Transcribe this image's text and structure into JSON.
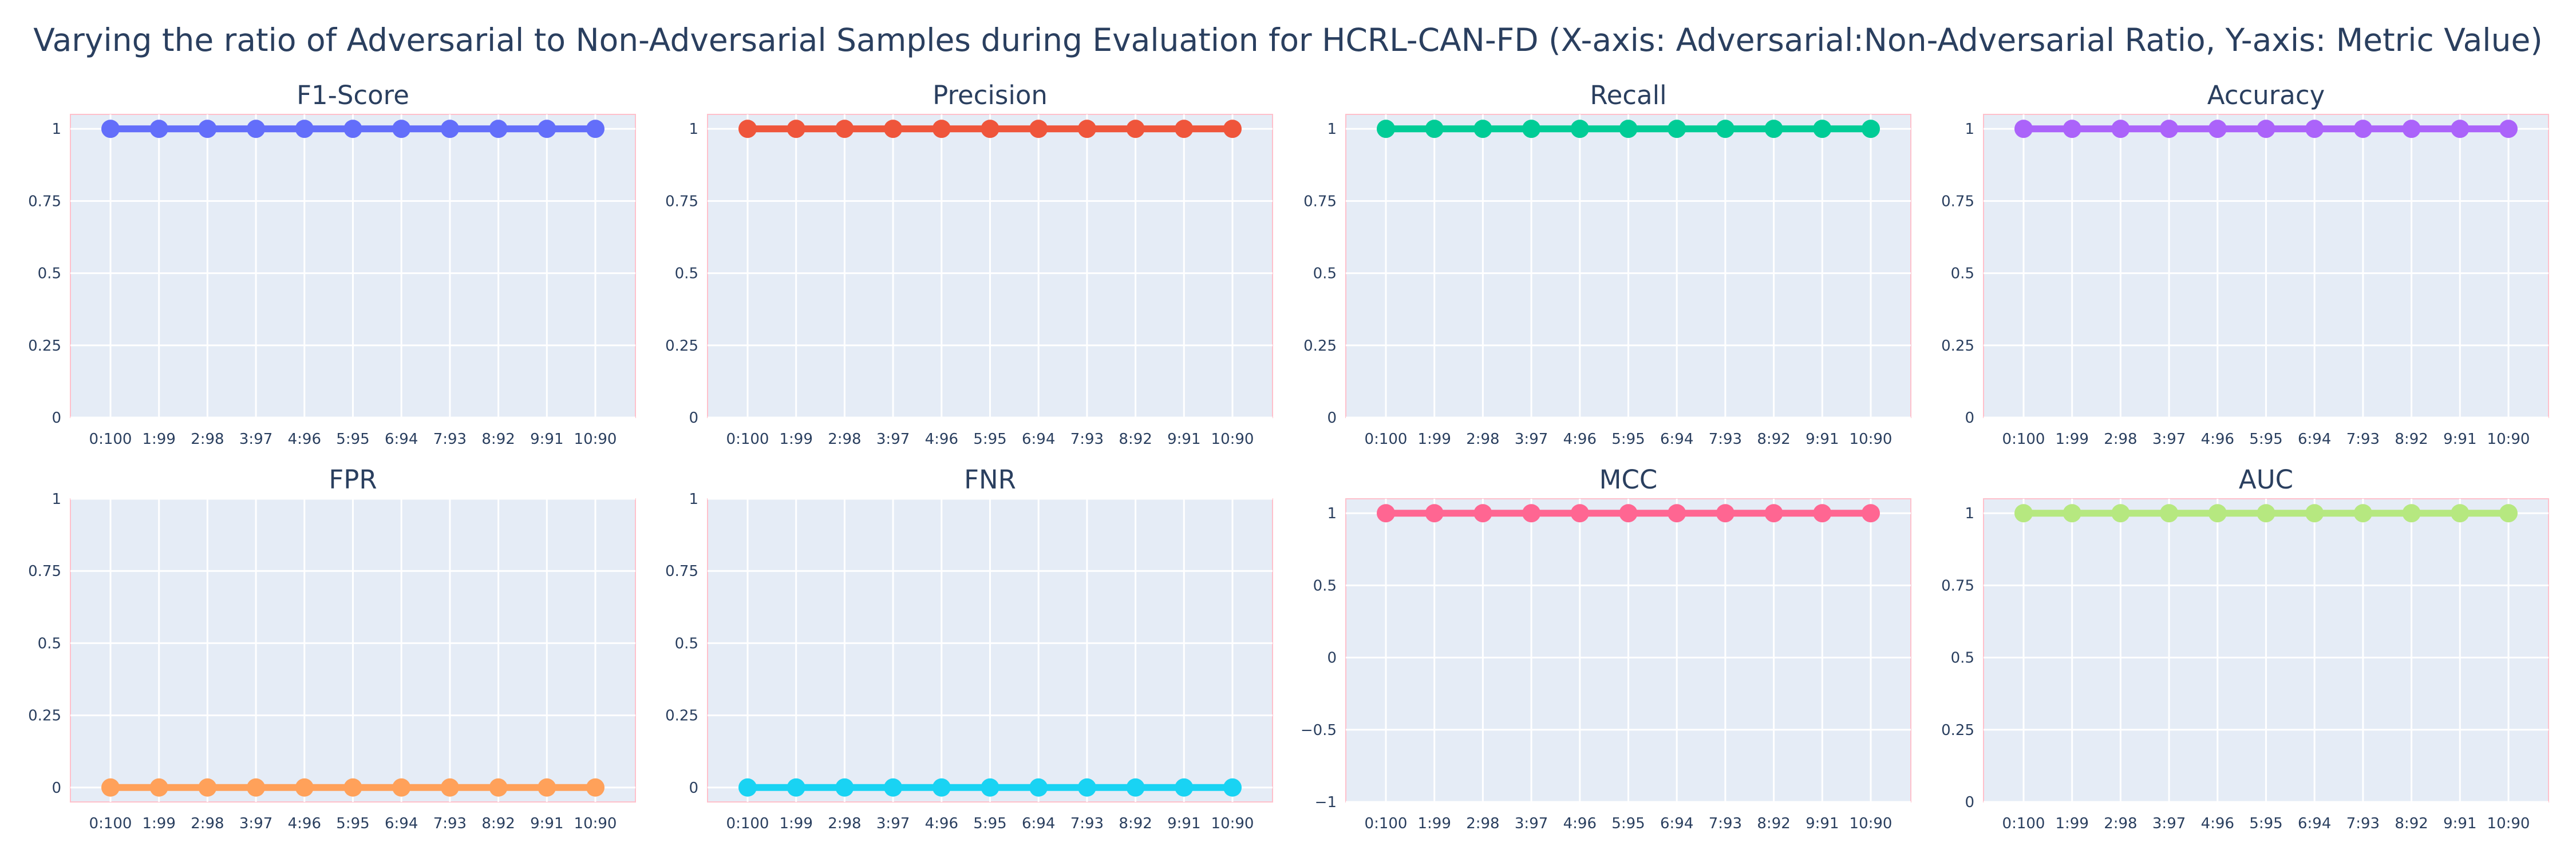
{
  "title": "Varying the ratio of Adversarial to Non-Adversarial Samples during Evaluation for HCRL-CAN-FD (X-axis: Adversarial:Non-Adversarial Ratio, Y-axis: Metric Value)",
  "chart_data": [
    {
      "type": "line",
      "title": "F1-Score",
      "color": "#636efa",
      "categories": [
        "0:100",
        "1:99",
        "2:98",
        "3:97",
        "4:96",
        "5:95",
        "6:94",
        "7:93",
        "8:92",
        "9:91",
        "10:90"
      ],
      "values": [
        1,
        1,
        1,
        1,
        1,
        1,
        1,
        1,
        1,
        1,
        1
      ],
      "ylim": [
        0,
        1.05
      ],
      "yticks": [
        0,
        0.25,
        0.5,
        0.75,
        1
      ],
      "ytick_labels": [
        "0",
        "0.25",
        "0.5",
        "0.75",
        "1"
      ],
      "grid": true
    },
    {
      "type": "line",
      "title": "Precision",
      "color": "#ef553b",
      "categories": [
        "0:100",
        "1:99",
        "2:98",
        "3:97",
        "4:96",
        "5:95",
        "6:94",
        "7:93",
        "8:92",
        "9:91",
        "10:90"
      ],
      "values": [
        1,
        1,
        1,
        1,
        1,
        1,
        1,
        1,
        1,
        1,
        1
      ],
      "ylim": [
        0,
        1.05
      ],
      "yticks": [
        0,
        0.25,
        0.5,
        0.75,
        1
      ],
      "ytick_labels": [
        "0",
        "0.25",
        "0.5",
        "0.75",
        "1"
      ],
      "grid": true
    },
    {
      "type": "line",
      "title": "Recall",
      "color": "#00cc96",
      "categories": [
        "0:100",
        "1:99",
        "2:98",
        "3:97",
        "4:96",
        "5:95",
        "6:94",
        "7:93",
        "8:92",
        "9:91",
        "10:90"
      ],
      "values": [
        1,
        1,
        1,
        1,
        1,
        1,
        1,
        1,
        1,
        1,
        1
      ],
      "ylim": [
        0,
        1.05
      ],
      "yticks": [
        0,
        0.25,
        0.5,
        0.75,
        1
      ],
      "ytick_labels": [
        "0",
        "0.25",
        "0.5",
        "0.75",
        "1"
      ],
      "grid": true
    },
    {
      "type": "line",
      "title": "Accuracy",
      "color": "#ab63fa",
      "categories": [
        "0:100",
        "1:99",
        "2:98",
        "3:97",
        "4:96",
        "5:95",
        "6:94",
        "7:93",
        "8:92",
        "9:91",
        "10:90"
      ],
      "values": [
        1,
        1,
        1,
        1,
        1,
        1,
        1,
        1,
        1,
        1,
        1
      ],
      "ylim": [
        0,
        1.05
      ],
      "yticks": [
        0,
        0.25,
        0.5,
        0.75,
        1
      ],
      "ytick_labels": [
        "0",
        "0.25",
        "0.5",
        "0.75",
        "1"
      ],
      "grid": true
    },
    {
      "type": "line",
      "title": "FPR",
      "color": "#ffa15a",
      "categories": [
        "0:100",
        "1:99",
        "2:98",
        "3:97",
        "4:96",
        "5:95",
        "6:94",
        "7:93",
        "8:92",
        "9:91",
        "10:90"
      ],
      "values": [
        0,
        0,
        0,
        0,
        0,
        0,
        0,
        0,
        0,
        0,
        0
      ],
      "ylim": [
        -0.05,
        1
      ],
      "yticks": [
        0,
        0.25,
        0.5,
        0.75,
        1
      ],
      "ytick_labels": [
        "0",
        "0.25",
        "0.5",
        "0.75",
        "1"
      ],
      "grid": true
    },
    {
      "type": "line",
      "title": "FNR",
      "color": "#19d3f3",
      "categories": [
        "0:100",
        "1:99",
        "2:98",
        "3:97",
        "4:96",
        "5:95",
        "6:94",
        "7:93",
        "8:92",
        "9:91",
        "10:90"
      ],
      "values": [
        0,
        0,
        0,
        0,
        0,
        0,
        0,
        0,
        0,
        0,
        0
      ],
      "ylim": [
        -0.05,
        1
      ],
      "yticks": [
        0,
        0.25,
        0.5,
        0.75,
        1
      ],
      "ytick_labels": [
        "0",
        "0.25",
        "0.5",
        "0.75",
        "1"
      ],
      "grid": true
    },
    {
      "type": "line",
      "title": "MCC",
      "color": "#ff6692",
      "categories": [
        "0:100",
        "1:99",
        "2:98",
        "3:97",
        "4:96",
        "5:95",
        "6:94",
        "7:93",
        "8:92",
        "9:91",
        "10:90"
      ],
      "values": [
        1,
        1,
        1,
        1,
        1,
        1,
        1,
        1,
        1,
        1,
        1
      ],
      "ylim": [
        -1,
        1.1
      ],
      "yticks": [
        -1,
        -0.5,
        0,
        0.5,
        1
      ],
      "ytick_labels": [
        "−1",
        "−0.5",
        "0",
        "0.5",
        "1"
      ],
      "grid": true
    },
    {
      "type": "line",
      "title": "AUC",
      "color": "#b6e880",
      "categories": [
        "0:100",
        "1:99",
        "2:98",
        "3:97",
        "4:96",
        "5:95",
        "6:94",
        "7:93",
        "8:92",
        "9:91",
        "10:90"
      ],
      "values": [
        1,
        1,
        1,
        1,
        1,
        1,
        1,
        1,
        1,
        1,
        1
      ],
      "ylim": [
        0,
        1.05
      ],
      "yticks": [
        0,
        0.25,
        0.5,
        0.75,
        1
      ],
      "ytick_labels": [
        "0",
        "0.25",
        "0.5",
        "0.75",
        "1"
      ],
      "grid": true
    }
  ],
  "colors": {
    "plot_bg": "#e5ecf6",
    "grid": "#ffffff",
    "border": "#ffc0cb",
    "text": "#2a3f5f"
  }
}
